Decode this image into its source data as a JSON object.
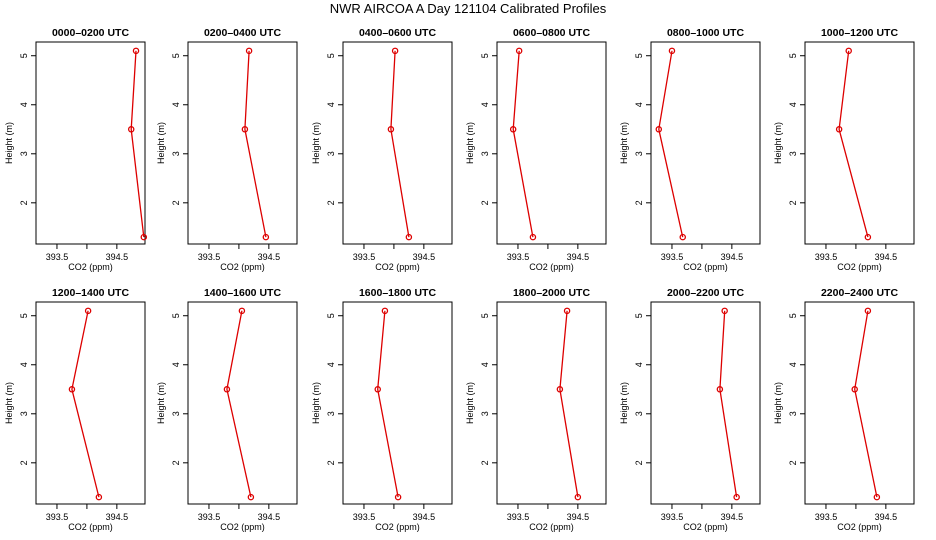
{
  "title": "NWR AIRCOA A  Day 121104  Calibrated Profiles",
  "colors": {
    "series": "#dd0000",
    "axis": "#000000"
  },
  "chart_data": {
    "type": "line",
    "xlabel": "CO2 (ppm)",
    "ylabel": "Height (m)",
    "xticks": [
      "393.5",
      "394.5"
    ],
    "yticks": [
      "2",
      "3",
      "4",
      "5"
    ],
    "heights": [
      1.3,
      3.5,
      5.1
    ],
    "panels": [
      {
        "title": "0000–0200 UTC",
        "xlim": [
          393.15,
          394.97
        ],
        "co2": [
          394.95,
          394.74,
          394.82
        ]
      },
      {
        "title": "0200–0400 UTC",
        "xlim": [
          393.15,
          394.97
        ],
        "co2": [
          394.45,
          394.1,
          394.17
        ]
      },
      {
        "title": "0400–0600 UTC",
        "xlim": [
          393.15,
          394.97
        ],
        "co2": [
          394.25,
          393.95,
          394.02
        ]
      },
      {
        "title": "0600–0800 UTC",
        "xlim": [
          393.15,
          394.97
        ],
        "co2": [
          393.75,
          393.42,
          393.52
        ]
      },
      {
        "title": "0800–1000 UTC",
        "xlim": [
          393.15,
          394.97
        ],
        "co2": [
          393.68,
          393.28,
          393.5
        ]
      },
      {
        "title": "1000–1200 UTC",
        "xlim": [
          393.15,
          394.97
        ],
        "co2": [
          394.2,
          393.72,
          393.88
        ]
      },
      {
        "title": "1200–1400 UTC",
        "xlim": [
          393.15,
          394.97
        ],
        "co2": [
          394.2,
          393.75,
          394.02
        ]
      },
      {
        "title": "1400–1600 UTC",
        "xlim": [
          393.15,
          394.97
        ],
        "co2": [
          394.2,
          393.8,
          394.05
        ]
      },
      {
        "title": "1600–1800 UTC",
        "xlim": [
          393.15,
          394.97
        ],
        "co2": [
          394.07,
          393.73,
          393.85
        ]
      },
      {
        "title": "1800–2000 UTC",
        "xlim": [
          393.15,
          394.97
        ],
        "co2": [
          394.5,
          394.2,
          394.32
        ]
      },
      {
        "title": "2000–2200 UTC",
        "xlim": [
          393.15,
          394.97
        ],
        "co2": [
          394.58,
          394.3,
          394.38
        ]
      },
      {
        "title": "2200–2400 UTC",
        "xlim": [
          393.15,
          394.97
        ],
        "co2": [
          394.35,
          393.98,
          394.2
        ]
      }
    ]
  }
}
